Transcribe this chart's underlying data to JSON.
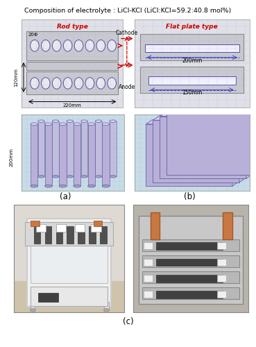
{
  "title": "Composition of electrolyte : LiCl-KCl (LiCl:KCl=59.2:40.8 mol%)",
  "title_fontsize": 7.5,
  "label_a": "(a)",
  "label_b": "(b)",
  "label_c": "(c)",
  "rod_type_label": "Rod type",
  "flat_plate_label": "Flat plate type",
  "cathode_label": "Cathode",
  "anode_label": "Anode",
  "dim_20phi": "20Φ",
  "dim_120mm": "120mm",
  "dim_220mm": "220mm",
  "dim_200mm_height": "200mm",
  "dim_200mm_flat": "200mm",
  "dim_150mm": "150mm",
  "label_color": "#cc0000",
  "bg_color": "#ffffff",
  "schematic_bg": "#e0e0e8",
  "schematic_inner": "#c8c8d0",
  "grid_color": "#b8bfcc",
  "rod_fill": "#e8e8f0",
  "rod_edge": "#5050a0",
  "plate_fill": "#e0e0ee",
  "plate_edge": "#5050a0",
  "arrow_color": "#cc0000",
  "dashed_color": "#4444cc",
  "view3d_bg": "#c8dce8",
  "rod3d_fill": "#b8b0d8",
  "rod3d_edge": "#6060a0",
  "rod3d_top": "#d8d0f0",
  "plate3d_fill": "#b8b0d8",
  "plate3d_edge": "#6060a0",
  "photo_bg_l": "#c8bca0",
  "photo_bg_r": "#b8b8b8"
}
